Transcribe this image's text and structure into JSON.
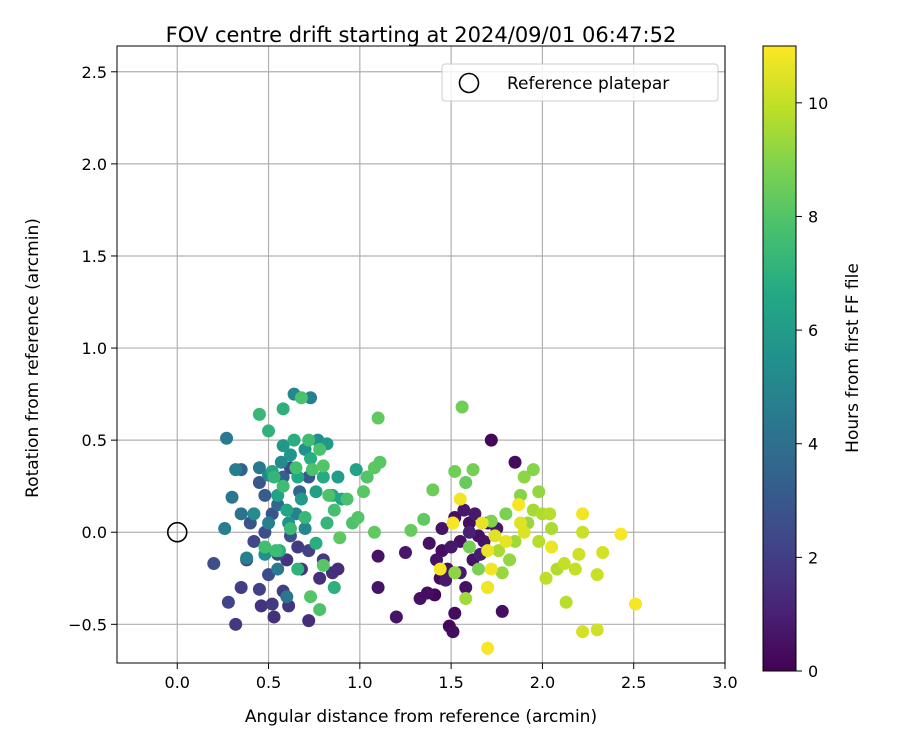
{
  "chart_data": {
    "type": "scatter",
    "title": "FOV centre drift starting at 2024/09/01 06:47:52",
    "xlabel": "Angular distance from reference (arcmin)",
    "ylabel": "Rotation from reference (arcmin)",
    "xlim": [
      -0.33,
      3.0
    ],
    "ylim": [
      -0.71,
      2.64
    ],
    "xticks": [
      "0.0",
      "0.5",
      "1.0",
      "1.5",
      "2.0",
      "2.5",
      "3.0"
    ],
    "yticks": [
      "−0.5",
      "0.0",
      "0.5",
      "1.0",
      "1.5",
      "2.0",
      "2.5"
    ],
    "xtick_values": [
      0.0,
      0.5,
      1.0,
      1.5,
      2.0,
      2.5,
      3.0
    ],
    "ytick_values": [
      -0.5,
      0.0,
      0.5,
      1.0,
      1.5,
      2.0,
      2.5
    ],
    "grid": true,
    "legend": {
      "position": "top-right",
      "label": "Reference platepar"
    },
    "reference_point": {
      "x": 0.0,
      "y": 0.0
    },
    "colorbar": {
      "label": "Hours from first FF file",
      "range": [
        0,
        11
      ],
      "ticks": [
        "0",
        "2",
        "4",
        "6",
        "8",
        "10"
      ],
      "tick_values": [
        0,
        2,
        4,
        6,
        8,
        10
      ],
      "colormap": "viridis"
    },
    "points": [
      [
        1.72,
        0.5,
        0.2
      ],
      [
        1.85,
        0.38,
        0.3
      ],
      [
        1.78,
        -0.43,
        0.4
      ],
      [
        1.41,
        -0.34,
        0.2
      ],
      [
        1.44,
        -0.25,
        0.3
      ],
      [
        1.52,
        -0.44,
        0.3
      ],
      [
        1.49,
        -0.51,
        0.2
      ],
      [
        1.51,
        -0.54,
        0.3
      ],
      [
        1.33,
        -0.36,
        0.5
      ],
      [
        1.37,
        -0.33,
        0.4
      ],
      [
        1.2,
        -0.46,
        0.6
      ],
      [
        1.1,
        -0.3,
        0.6
      ],
      [
        1.1,
        -0.13,
        0.6
      ],
      [
        1.25,
        -0.11,
        0.7
      ],
      [
        1.38,
        -0.06,
        0.5
      ],
      [
        1.45,
        -0.1,
        0.4
      ],
      [
        1.48,
        -0.2,
        0.5
      ],
      [
        1.55,
        -0.05,
        0.5
      ],
      [
        1.6,
        0.05,
        0.4
      ],
      [
        1.65,
        -0.02,
        0.5
      ],
      [
        1.7,
        0.05,
        0.4
      ],
      [
        1.62,
        -0.15,
        0.6
      ],
      [
        1.58,
        -0.3,
        0.5
      ],
      [
        1.45,
        0.02,
        0.6
      ],
      [
        1.52,
        0.08,
        0.5
      ],
      [
        1.57,
        0.12,
        0.7
      ],
      [
        1.63,
        0.1,
        0.8
      ],
      [
        1.68,
        -0.05,
        0.6
      ],
      [
        1.75,
        0.02,
        0.7
      ],
      [
        1.5,
        -0.08,
        0.7
      ],
      [
        1.42,
        -0.15,
        0.6
      ],
      [
        1.55,
        -0.22,
        0.8
      ],
      [
        1.47,
        -0.26,
        0.8
      ],
      [
        1.66,
        -0.12,
        0.9
      ],
      [
        1.6,
        0.0,
        1.0
      ],
      [
        0.72,
        -0.48,
        1.4
      ],
      [
        0.53,
        -0.46,
        1.5
      ],
      [
        0.32,
        -0.5,
        1.8
      ],
      [
        0.46,
        -0.4,
        1.6
      ],
      [
        0.52,
        -0.39,
        1.9
      ],
      [
        0.61,
        -0.4,
        1.7
      ],
      [
        0.35,
        -0.3,
        2.0
      ],
      [
        0.45,
        -0.31,
        2.1
      ],
      [
        0.28,
        -0.38,
        2.2
      ],
      [
        0.68,
        -0.2,
        1.6
      ],
      [
        0.78,
        -0.25,
        1.5
      ],
      [
        0.85,
        -0.22,
        1.5
      ],
      [
        0.6,
        -0.15,
        1.7
      ],
      [
        0.58,
        -0.32,
        2.0
      ],
      [
        0.38,
        -0.15,
        2.2
      ],
      [
        0.5,
        -0.23,
        2.5
      ],
      [
        0.2,
        -0.17,
        2.6
      ],
      [
        0.42,
        -0.05,
        2.3
      ],
      [
        0.55,
        -0.12,
        2.4
      ],
      [
        0.66,
        -0.08,
        1.9
      ],
      [
        0.72,
        -0.1,
        2.1
      ],
      [
        0.8,
        -0.15,
        1.8
      ],
      [
        0.88,
        -0.2,
        1.4
      ],
      [
        0.62,
        -0.02,
        2.7
      ],
      [
        0.48,
        0.0,
        2.6
      ],
      [
        0.4,
        0.05,
        2.8
      ],
      [
        0.52,
        0.1,
        2.9
      ],
      [
        0.35,
        0.34,
        3.4
      ],
      [
        0.45,
        0.27,
        3.0
      ],
      [
        0.48,
        0.2,
        3.2
      ],
      [
        0.58,
        0.3,
        3.3
      ],
      [
        0.62,
        0.35,
        2.5
      ],
      [
        0.55,
        0.15,
        3.7
      ],
      [
        0.67,
        0.22,
        3.6
      ],
      [
        0.72,
        0.3,
        3.1
      ],
      [
        0.45,
        0.35,
        4.4
      ],
      [
        0.35,
        0.1,
        4.2
      ],
      [
        0.3,
        0.19,
        4.4
      ],
      [
        0.27,
        0.51,
        4.5
      ],
      [
        0.26,
        0.02,
        4.6
      ],
      [
        0.38,
        -0.14,
        4.8
      ],
      [
        0.32,
        0.34,
        4.6
      ],
      [
        0.5,
        0.05,
        4.7
      ],
      [
        0.55,
        -0.2,
        4.5
      ],
      [
        0.6,
        -0.35,
        4.3
      ],
      [
        0.65,
        0.1,
        4.9
      ],
      [
        0.7,
        0.02,
        5.0
      ],
      [
        0.73,
        0.73,
        4.8
      ],
      [
        0.64,
        0.75,
        5.1
      ],
      [
        0.57,
        0.38,
        5.2
      ],
      [
        0.5,
        0.31,
        5.1
      ],
      [
        0.42,
        0.1,
        5.3
      ],
      [
        0.48,
        -0.12,
        5.5
      ],
      [
        0.61,
        0.05,
        5.6
      ],
      [
        0.58,
        0.47,
        5.8
      ],
      [
        0.62,
        0.42,
        5.7
      ],
      [
        0.7,
        0.45,
        5.5
      ],
      [
        0.77,
        0.5,
        5.4
      ],
      [
        0.82,
        0.48,
        5.9
      ],
      [
        0.88,
        0.3,
        6.1
      ],
      [
        0.76,
        0.22,
        6.2
      ],
      [
        0.68,
        0.18,
        6.0
      ],
      [
        0.55,
        0.2,
        6.3
      ],
      [
        0.52,
        0.33,
        6.4
      ],
      [
        0.6,
        0.12,
        6.5
      ],
      [
        0.66,
        0.3,
        6.6
      ],
      [
        0.73,
        0.4,
        6.8
      ],
      [
        0.8,
        0.3,
        6.7
      ],
      [
        0.85,
        0.2,
        6.5
      ],
      [
        0.9,
        0.18,
        6.4
      ],
      [
        0.98,
        0.34,
        6.3
      ],
      [
        0.64,
        0.5,
        6.9
      ],
      [
        0.58,
        0.67,
        7.0
      ],
      [
        0.5,
        0.55,
        7.1
      ],
      [
        0.45,
        0.64,
        7.3
      ],
      [
        0.53,
        0.3,
        7.2
      ],
      [
        0.56,
        -0.1,
        7.0
      ],
      [
        0.66,
        -0.2,
        7.1
      ],
      [
        0.76,
        -0.06,
        6.9
      ],
      [
        0.86,
        -0.3,
        7.0
      ],
      [
        0.82,
        0.05,
        7.2
      ],
      [
        0.7,
        0.08,
        7.3
      ],
      [
        0.62,
        0.02,
        7.4
      ],
      [
        0.54,
        -0.1,
        7.5
      ],
      [
        0.48,
        -0.08,
        7.6
      ],
      [
        0.58,
        0.25,
        7.5
      ],
      [
        0.65,
        0.35,
        7.7
      ],
      [
        0.72,
        0.5,
        7.6
      ],
      [
        0.78,
        0.45,
        7.8
      ],
      [
        0.83,
        0.2,
        7.9
      ],
      [
        0.68,
        0.73,
        7.8
      ],
      [
        0.74,
        0.34,
        7.9
      ],
      [
        0.8,
        0.36,
        8.0
      ],
      [
        0.86,
        0.12,
        7.7
      ],
      [
        0.93,
        0.18,
        7.8
      ],
      [
        0.96,
        0.05,
        7.9
      ],
      [
        0.99,
        0.08,
        8.0
      ],
      [
        1.02,
        0.22,
        8.1
      ],
      [
        1.04,
        0.3,
        8.0
      ],
      [
        1.08,
        0.35,
        8.2
      ],
      [
        1.1,
        0.62,
        8.3
      ],
      [
        1.11,
        0.38,
        8.1
      ],
      [
        0.78,
        -0.42,
        7.9
      ],
      [
        0.73,
        -0.35,
        8.0
      ],
      [
        0.8,
        -0.18,
        8.1
      ],
      [
        0.89,
        -0.03,
        8.2
      ],
      [
        1.08,
        0.0,
        8.3
      ],
      [
        1.28,
        0.01,
        8.4
      ],
      [
        1.35,
        0.07,
        8.3
      ],
      [
        1.4,
        0.23,
        8.5
      ],
      [
        1.52,
        0.33,
        8.6
      ],
      [
        1.58,
        0.27,
        8.4
      ],
      [
        1.62,
        0.34,
        8.7
      ],
      [
        1.56,
        0.68,
        8.6
      ],
      [
        1.6,
        -0.08,
        8.7
      ],
      [
        1.65,
        -0.2,
        8.8
      ],
      [
        1.72,
        0.06,
        8.9
      ],
      [
        1.8,
        0.1,
        8.8
      ],
      [
        1.88,
        0.2,
        9.0
      ],
      [
        1.9,
        0.3,
        9.1
      ],
      [
        1.95,
        0.34,
        9.0
      ],
      [
        1.98,
        0.22,
        9.2
      ],
      [
        1.92,
        0.05,
        9.3
      ],
      [
        1.85,
        -0.05,
        9.4
      ],
      [
        1.82,
        -0.15,
        9.2
      ],
      [
        1.78,
        -0.22,
        9.3
      ],
      [
        1.7,
        -0.3,
        9.5
      ],
      [
        1.52,
        -0.22,
        9.1
      ],
      [
        1.58,
        -0.36,
        9.4
      ],
      [
        1.76,
        -0.1,
        9.6
      ],
      [
        1.95,
        0.12,
        9.5
      ],
      [
        2.0,
        0.1,
        9.7
      ],
      [
        2.04,
        0.1,
        9.8
      ],
      [
        2.05,
        0.02,
        9.6
      ],
      [
        1.98,
        -0.05,
        9.8
      ],
      [
        2.02,
        -0.25,
        9.9
      ],
      [
        2.08,
        -0.2,
        9.7
      ],
      [
        2.12,
        -0.17,
        10.0
      ],
      [
        2.13,
        -0.38,
        9.8
      ],
      [
        2.22,
        0.0,
        10.1
      ],
      [
        2.2,
        -0.12,
        10.2
      ],
      [
        2.18,
        -0.2,
        10.0
      ],
      [
        2.22,
        -0.54,
        10.3
      ],
      [
        2.3,
        -0.53,
        10.2
      ],
      [
        2.3,
        -0.23,
        10.1
      ],
      [
        2.33,
        -0.11,
        10.3
      ],
      [
        1.9,
        0.0,
        10.4
      ],
      [
        1.88,
        0.05,
        10.5
      ],
      [
        1.8,
        -0.05,
        10.6
      ],
      [
        1.74,
        -0.02,
        10.5
      ],
      [
        1.7,
        -0.1,
        10.7
      ],
      [
        1.67,
        0.05,
        10.6
      ],
      [
        1.55,
        0.18,
        10.8
      ],
      [
        1.51,
        0.05,
        10.9
      ],
      [
        1.44,
        -0.2,
        10.9
      ],
      [
        1.72,
        -0.2,
        10.8
      ],
      [
        1.7,
        -0.63,
        10.9
      ],
      [
        1.7,
        -0.3,
        10.8
      ],
      [
        1.87,
        0.15,
        10.9
      ],
      [
        2.05,
        -0.08,
        10.7
      ],
      [
        2.22,
        0.1,
        10.8
      ],
      [
        2.43,
        -0.01,
        10.9
      ],
      [
        2.51,
        -0.39,
        10.9
      ]
    ]
  }
}
